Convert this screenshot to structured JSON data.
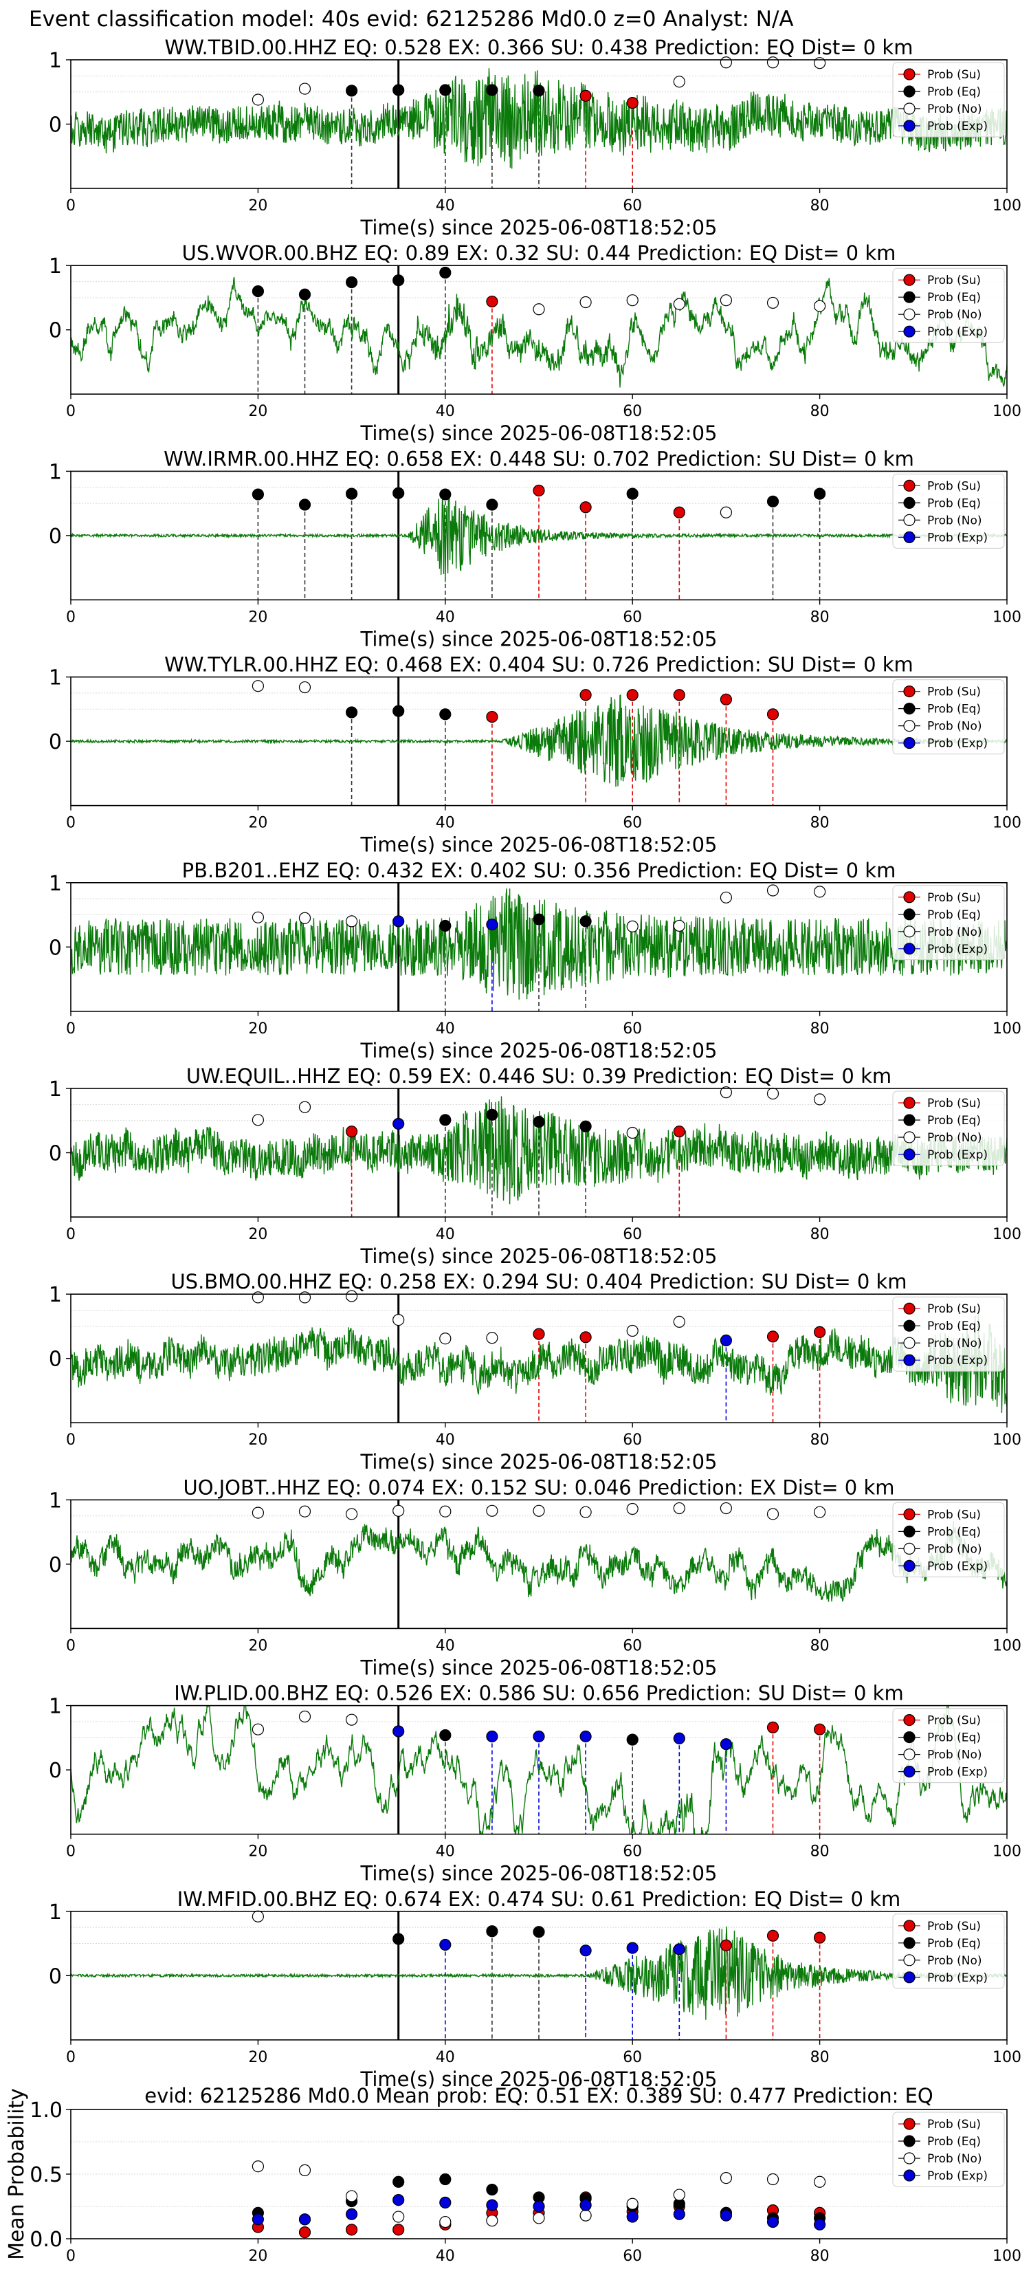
{
  "suptitle": "Event classification model: 40s evid: 62125286 Md0.0 z=0 Analyst: N/A",
  "xlabel": "Time(s) since 2025-06-08T18:52:05",
  "legend": [
    "Prob (Su)",
    "Prob (Eq)",
    "Prob (No)",
    "Prob (Exp)"
  ],
  "colors": {
    "su": "#e00000",
    "eq": "#000000",
    "no": "#ffffff",
    "exp": "#0000dd",
    "wave": "#0a7a0a"
  },
  "chart_data": [
    {
      "type": "line",
      "title": "WW.TBID.00.HHZ   EQ: 0.528  EX: 0.366  SU: 0.438   Prediction: EQ    Dist= 0 km",
      "xlim": [
        0,
        100
      ],
      "ylim": [
        -1,
        1
      ],
      "xticks": [
        0,
        20,
        40,
        60,
        80,
        100
      ],
      "yticks": [
        1,
        0
      ],
      "wave": {
        "amp": 0.28,
        "onset": 36,
        "peak": 45,
        "burst": 0.55,
        "decay": 12,
        "freq": 1.0,
        "seed": 11,
        "lf": 0.1
      },
      "markers": [
        {
          "t": 20,
          "p": 0.38,
          "cls": "no"
        },
        {
          "t": 25,
          "p": 0.55,
          "cls": "no"
        },
        {
          "t": 30,
          "p": 0.52,
          "cls": "eq"
        },
        {
          "t": 35,
          "p": 0.53,
          "cls": "eq"
        },
        {
          "t": 40,
          "p": 0.53,
          "cls": "eq"
        },
        {
          "t": 45,
          "p": 0.53,
          "cls": "eq"
        },
        {
          "t": 50,
          "p": 0.52,
          "cls": "eq"
        },
        {
          "t": 55,
          "p": 0.44,
          "cls": "su"
        },
        {
          "t": 60,
          "p": 0.33,
          "cls": "su"
        },
        {
          "t": 65,
          "p": 0.66,
          "cls": "no"
        },
        {
          "t": 70,
          "p": 0.96,
          "cls": "no"
        },
        {
          "t": 75,
          "p": 0.96,
          "cls": "no"
        },
        {
          "t": 80,
          "p": 0.95,
          "cls": "no"
        }
      ]
    },
    {
      "type": "line",
      "title": "US.WVOR.00.BHZ   EQ: 0.89  EX: 0.32  SU: 0.44   Prediction: EQ    Dist= 0 km",
      "xlim": [
        0,
        100
      ],
      "ylim": [
        -1,
        1
      ],
      "xticks": [
        0,
        20,
        40,
        60,
        80,
        100
      ],
      "yticks": [
        1,
        0
      ],
      "wave": {
        "amp": 0.25,
        "onset": 36,
        "peak": 41,
        "burst": 0.45,
        "decay": 8,
        "freq": 0.35,
        "seed": 23,
        "lf": 0.45
      },
      "markers": [
        {
          "t": 20,
          "p": 0.6,
          "cls": "eq"
        },
        {
          "t": 25,
          "p": 0.55,
          "cls": "eq"
        },
        {
          "t": 30,
          "p": 0.74,
          "cls": "eq"
        },
        {
          "t": 35,
          "p": 0.77,
          "cls": "eq"
        },
        {
          "t": 40,
          "p": 0.89,
          "cls": "eq"
        },
        {
          "t": 45,
          "p": 0.44,
          "cls": "su"
        },
        {
          "t": 50,
          "p": 0.32,
          "cls": "no"
        },
        {
          "t": 55,
          "p": 0.43,
          "cls": "no"
        },
        {
          "t": 60,
          "p": 0.46,
          "cls": "no"
        },
        {
          "t": 65,
          "p": 0.4,
          "cls": "no"
        },
        {
          "t": 70,
          "p": 0.46,
          "cls": "no"
        },
        {
          "t": 75,
          "p": 0.42,
          "cls": "no"
        },
        {
          "t": 80,
          "p": 0.37,
          "cls": "no"
        }
      ]
    },
    {
      "type": "line",
      "title": "WW.IRMR.00.HHZ   EQ: 0.658  EX: 0.448  SU: 0.702   Prediction: SU    Dist= 0 km",
      "xlim": [
        0,
        100
      ],
      "ylim": [
        -1,
        1
      ],
      "xticks": [
        0,
        20,
        40,
        60,
        80,
        100
      ],
      "yticks": [
        1,
        0
      ],
      "wave": {
        "amp": 0.02,
        "onset": 36,
        "peak": 40,
        "burst": 0.75,
        "decay": 5,
        "freq": 1.0,
        "seed": 31,
        "lf": 0.0
      },
      "markers": [
        {
          "t": 20,
          "p": 0.64,
          "cls": "eq"
        },
        {
          "t": 25,
          "p": 0.48,
          "cls": "eq"
        },
        {
          "t": 30,
          "p": 0.65,
          "cls": "eq"
        },
        {
          "t": 35,
          "p": 0.66,
          "cls": "eq"
        },
        {
          "t": 40,
          "p": 0.64,
          "cls": "eq"
        },
        {
          "t": 45,
          "p": 0.48,
          "cls": "eq"
        },
        {
          "t": 50,
          "p": 0.7,
          "cls": "su"
        },
        {
          "t": 55,
          "p": 0.44,
          "cls": "su"
        },
        {
          "t": 60,
          "p": 0.65,
          "cls": "eq"
        },
        {
          "t": 65,
          "p": 0.36,
          "cls": "su"
        },
        {
          "t": 70,
          "p": 0.36,
          "cls": "no"
        },
        {
          "t": 75,
          "p": 0.53,
          "cls": "eq"
        },
        {
          "t": 80,
          "p": 0.65,
          "cls": "eq"
        }
      ]
    },
    {
      "type": "line",
      "title": "WW.TYLR.00.HHZ   EQ: 0.468  EX: 0.404  SU: 0.726   Prediction: SU    Dist= 0 km",
      "xlim": [
        0,
        100
      ],
      "ylim": [
        -1,
        1
      ],
      "xticks": [
        0,
        20,
        40,
        60,
        80,
        100
      ],
      "yticks": [
        1,
        0
      ],
      "wave": {
        "amp": 0.02,
        "onset": 46,
        "peak": 60,
        "burst": 0.8,
        "decay": 8,
        "freq": 1.0,
        "seed": 41,
        "lf": 0.0
      },
      "markers": [
        {
          "t": 20,
          "p": 0.86,
          "cls": "no"
        },
        {
          "t": 25,
          "p": 0.84,
          "cls": "no"
        },
        {
          "t": 30,
          "p": 0.45,
          "cls": "eq"
        },
        {
          "t": 35,
          "p": 0.47,
          "cls": "eq"
        },
        {
          "t": 40,
          "p": 0.42,
          "cls": "eq"
        },
        {
          "t": 45,
          "p": 0.38,
          "cls": "su"
        },
        {
          "t": 55,
          "p": 0.72,
          "cls": "su"
        },
        {
          "t": 60,
          "p": 0.72,
          "cls": "su"
        },
        {
          "t": 65,
          "p": 0.72,
          "cls": "su"
        },
        {
          "t": 70,
          "p": 0.65,
          "cls": "su"
        },
        {
          "t": 75,
          "p": 0.42,
          "cls": "su"
        }
      ]
    },
    {
      "type": "line",
      "title": "PB.B201..EHZ   EQ: 0.432  EX: 0.402  SU: 0.356   Prediction: EQ    Dist= 0 km",
      "xlim": [
        0,
        100
      ],
      "ylim": [
        -1,
        1
      ],
      "xticks": [
        0,
        20,
        40,
        60,
        80,
        100
      ],
      "yticks": [
        1,
        0
      ],
      "wave": {
        "amp": 0.45,
        "onset": 40,
        "peak": 47,
        "burst": 0.5,
        "decay": 7,
        "freq": 1.0,
        "seed": 53,
        "lf": 0.0
      },
      "markers": [
        {
          "t": 20,
          "p": 0.46,
          "cls": "no"
        },
        {
          "t": 25,
          "p": 0.45,
          "cls": "no"
        },
        {
          "t": 30,
          "p": 0.4,
          "cls": "no"
        },
        {
          "t": 35,
          "p": 0.4,
          "cls": "exp"
        },
        {
          "t": 40,
          "p": 0.33,
          "cls": "eq"
        },
        {
          "t": 45,
          "p": 0.35,
          "cls": "exp"
        },
        {
          "t": 50,
          "p": 0.43,
          "cls": "eq"
        },
        {
          "t": 55,
          "p": 0.4,
          "cls": "eq"
        },
        {
          "t": 60,
          "p": 0.32,
          "cls": "no"
        },
        {
          "t": 65,
          "p": 0.33,
          "cls": "no"
        },
        {
          "t": 70,
          "p": 0.77,
          "cls": "no"
        },
        {
          "t": 75,
          "p": 0.88,
          "cls": "no"
        },
        {
          "t": 80,
          "p": 0.86,
          "cls": "no"
        }
      ]
    },
    {
      "type": "line",
      "title": "UW.EQUIL..HHZ   EQ: 0.59  EX: 0.446  SU: 0.39   Prediction: EQ    Dist= 0 km",
      "xlim": [
        0,
        100
      ],
      "ylim": [
        -1,
        1
      ],
      "xticks": [
        0,
        20,
        40,
        60,
        80,
        100
      ],
      "yticks": [
        1,
        0
      ],
      "wave": {
        "amp": 0.3,
        "onset": 38,
        "peak": 46,
        "burst": 0.55,
        "decay": 9,
        "freq": 1.0,
        "seed": 67,
        "lf": 0.1
      },
      "markers": [
        {
          "t": 20,
          "p": 0.51,
          "cls": "no"
        },
        {
          "t": 25,
          "p": 0.71,
          "cls": "no"
        },
        {
          "t": 30,
          "p": 0.33,
          "cls": "su"
        },
        {
          "t": 35,
          "p": 0.45,
          "cls": "exp"
        },
        {
          "t": 40,
          "p": 0.51,
          "cls": "eq"
        },
        {
          "t": 45,
          "p": 0.59,
          "cls": "eq"
        },
        {
          "t": 50,
          "p": 0.48,
          "cls": "eq"
        },
        {
          "t": 55,
          "p": 0.41,
          "cls": "eq"
        },
        {
          "t": 60,
          "p": 0.31,
          "cls": "no"
        },
        {
          "t": 65,
          "p": 0.33,
          "cls": "su"
        },
        {
          "t": 70,
          "p": 0.94,
          "cls": "no"
        },
        {
          "t": 75,
          "p": 0.92,
          "cls": "no"
        },
        {
          "t": 80,
          "p": 0.83,
          "cls": "no"
        }
      ]
    },
    {
      "type": "line",
      "title": "US.BMO.00.HHZ   EQ: 0.258  EX: 0.294  SU: 0.404   Prediction: SU    Dist= 0 km",
      "xlim": [
        0,
        100
      ],
      "ylim": [
        -1,
        1
      ],
      "xticks": [
        0,
        20,
        40,
        60,
        80,
        100
      ],
      "yticks": [
        1,
        0
      ],
      "wave": {
        "amp": 0.32,
        "onset": 90,
        "peak": 97,
        "burst": 0.6,
        "decay": 6,
        "freq": 0.8,
        "seed": 79,
        "lf": 0.2
      },
      "markers": [
        {
          "t": 20,
          "p": 0.95,
          "cls": "no"
        },
        {
          "t": 25,
          "p": 0.95,
          "cls": "no"
        },
        {
          "t": 30,
          "p": 0.97,
          "cls": "no"
        },
        {
          "t": 35,
          "p": 0.6,
          "cls": "no"
        },
        {
          "t": 40,
          "p": 0.31,
          "cls": "no"
        },
        {
          "t": 45,
          "p": 0.32,
          "cls": "no"
        },
        {
          "t": 50,
          "p": 0.38,
          "cls": "su"
        },
        {
          "t": 55,
          "p": 0.33,
          "cls": "su"
        },
        {
          "t": 60,
          "p": 0.43,
          "cls": "no"
        },
        {
          "t": 65,
          "p": 0.57,
          "cls": "no"
        },
        {
          "t": 70,
          "p": 0.28,
          "cls": "exp"
        },
        {
          "t": 75,
          "p": 0.34,
          "cls": "su"
        },
        {
          "t": 80,
          "p": 0.41,
          "cls": "su"
        }
      ]
    },
    {
      "type": "line",
      "title": "UO.JOBT..HHZ   EQ: 0.074  EX: 0.152  SU: 0.046   Prediction: EX    Dist= 0 km",
      "xlim": [
        0,
        100
      ],
      "ylim": [
        -1,
        1
      ],
      "xticks": [
        0,
        20,
        40,
        60,
        80,
        100
      ],
      "yticks": [
        1,
        0
      ],
      "wave": {
        "amp": 0.38,
        "onset": 200,
        "peak": 200,
        "burst": 0,
        "decay": 1,
        "freq": 0.4,
        "seed": 89,
        "lf": 0.3
      },
      "markers": [
        {
          "t": 20,
          "p": 0.8,
          "cls": "no"
        },
        {
          "t": 25,
          "p": 0.82,
          "cls": "no"
        },
        {
          "t": 30,
          "p": 0.78,
          "cls": "no"
        },
        {
          "t": 35,
          "p": 0.83,
          "cls": "no"
        },
        {
          "t": 40,
          "p": 0.82,
          "cls": "no"
        },
        {
          "t": 45,
          "p": 0.83,
          "cls": "no"
        },
        {
          "t": 50,
          "p": 0.83,
          "cls": "no"
        },
        {
          "t": 55,
          "p": 0.81,
          "cls": "no"
        },
        {
          "t": 60,
          "p": 0.86,
          "cls": "no"
        },
        {
          "t": 65,
          "p": 0.87,
          "cls": "no"
        },
        {
          "t": 70,
          "p": 0.87,
          "cls": "no"
        },
        {
          "t": 75,
          "p": 0.78,
          "cls": "no"
        },
        {
          "t": 80,
          "p": 0.81,
          "cls": "no"
        }
      ]
    },
    {
      "type": "line",
      "title": "IW.PLID.00.BHZ   EQ: 0.526  EX: 0.586  SU: 0.656   Prediction: SU    Dist= 0 km",
      "xlim": [
        0,
        100
      ],
      "ylim": [
        -1,
        1
      ],
      "xticks": [
        0,
        20,
        40,
        60,
        80,
        100
      ],
      "yticks": [
        1,
        0
      ],
      "wave": {
        "amp": 0.03,
        "onset": 48,
        "peak": 68,
        "burst": 0.55,
        "decay": 4,
        "freq": 0.25,
        "seed": 97,
        "lf": 0.7
      },
      "markers": [
        {
          "t": 20,
          "p": 0.63,
          "cls": "no"
        },
        {
          "t": 25,
          "p": 0.83,
          "cls": "no"
        },
        {
          "t": 30,
          "p": 0.78,
          "cls": "no"
        },
        {
          "t": 35,
          "p": 0.6,
          "cls": "exp"
        },
        {
          "t": 40,
          "p": 0.54,
          "cls": "eq"
        },
        {
          "t": 45,
          "p": 0.52,
          "cls": "exp"
        },
        {
          "t": 50,
          "p": 0.52,
          "cls": "exp"
        },
        {
          "t": 55,
          "p": 0.52,
          "cls": "exp"
        },
        {
          "t": 60,
          "p": 0.47,
          "cls": "eq"
        },
        {
          "t": 65,
          "p": 0.49,
          "cls": "exp"
        },
        {
          "t": 70,
          "p": 0.4,
          "cls": "exp"
        },
        {
          "t": 75,
          "p": 0.66,
          "cls": "su"
        },
        {
          "t": 80,
          "p": 0.63,
          "cls": "su"
        }
      ]
    },
    {
      "type": "line",
      "title": "IW.MFID.00.BHZ   EQ: 0.674  EX: 0.474  SU: 0.61   Prediction: EQ    Dist= 0 km",
      "xlim": [
        0,
        100
      ],
      "ylim": [
        -1,
        1
      ],
      "xticks": [
        0,
        20,
        40,
        60,
        80,
        100
      ],
      "yticks": [
        1,
        0
      ],
      "wave": {
        "amp": 0.02,
        "onset": 55,
        "peak": 70,
        "burst": 0.8,
        "decay": 6,
        "freq": 1.0,
        "seed": 103,
        "lf": 0.0
      },
      "markers": [
        {
          "t": 20,
          "p": 0.92,
          "cls": "no"
        },
        {
          "t": 35,
          "p": 0.57,
          "cls": "eq"
        },
        {
          "t": 40,
          "p": 0.48,
          "cls": "exp"
        },
        {
          "t": 45,
          "p": 0.69,
          "cls": "eq"
        },
        {
          "t": 50,
          "p": 0.68,
          "cls": "eq"
        },
        {
          "t": 55,
          "p": 0.39,
          "cls": "exp"
        },
        {
          "t": 60,
          "p": 0.43,
          "cls": "exp"
        },
        {
          "t": 65,
          "p": 0.41,
          "cls": "exp"
        },
        {
          "t": 70,
          "p": 0.47,
          "cls": "su"
        },
        {
          "t": 75,
          "p": 0.62,
          "cls": "su"
        },
        {
          "t": 80,
          "p": 0.59,
          "cls": "su"
        }
      ]
    },
    {
      "type": "scatter",
      "title": "evid: 62125286  Md0.0   Mean prob:   EQ: 0.51  EX: 0.389  SU: 0.477   Prediction: EQ",
      "ylabel": "Mean Probability",
      "xlim": [
        0,
        100
      ],
      "ylim": [
        0,
        1
      ],
      "xticks": [
        0,
        20,
        40,
        60,
        80,
        100
      ],
      "yticks": [
        1.0,
        0.5,
        0.0
      ],
      "x": [
        20,
        25,
        30,
        35,
        40,
        45,
        50,
        55,
        60,
        65,
        70,
        75,
        80
      ],
      "series": [
        {
          "name": "Prob (Su)",
          "cls": "su",
          "values": [
            0.09,
            0.05,
            0.07,
            0.07,
            0.11,
            0.2,
            0.2,
            0.32,
            0.21,
            0.25,
            0.2,
            0.22,
            0.2
          ]
        },
        {
          "name": "Prob (Eq)",
          "cls": "eq",
          "values": [
            0.2,
            0.15,
            0.29,
            0.44,
            0.46,
            0.38,
            0.32,
            0.31,
            0.25,
            0.27,
            0.2,
            0.16,
            0.16
          ]
        },
        {
          "name": "Prob (No)",
          "cls": "no",
          "values": [
            0.56,
            0.53,
            0.33,
            0.17,
            0.13,
            0.14,
            0.16,
            0.18,
            0.27,
            0.34,
            0.47,
            0.46,
            0.44
          ]
        },
        {
          "name": "Prob (Exp)",
          "cls": "exp",
          "values": [
            0.15,
            0.15,
            0.19,
            0.3,
            0.28,
            0.26,
            0.25,
            0.26,
            0.17,
            0.19,
            0.18,
            0.13,
            0.11
          ]
        }
      ]
    }
  ]
}
